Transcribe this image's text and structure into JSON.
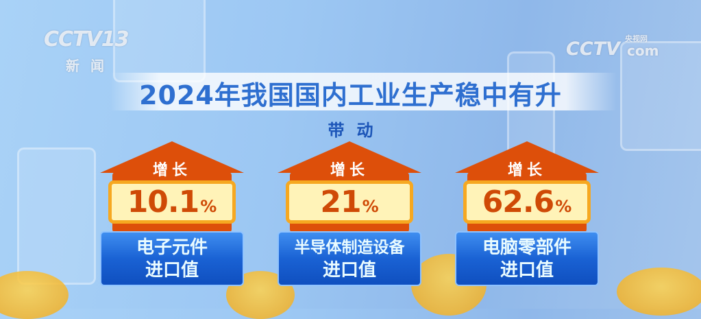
{
  "logos": {
    "left": "CCTV13",
    "left_sub": "新闻",
    "right": "CCTV",
    "right_sub": "央视网",
    "right_com": "com"
  },
  "title": "2024年我国国内工业生产稳中有升",
  "subtitle": "带动",
  "colors": {
    "title": "#2e6fd0",
    "arrow": "#dd4f0a",
    "value_bg": "#fff3b8",
    "label_bg": "#1a62d4"
  },
  "cards": [
    {
      "growth_label": "增长",
      "value": "10.1",
      "unit": "%",
      "label_line1": "电子元件",
      "label_line2": "进口值"
    },
    {
      "growth_label": "增长",
      "value": "21",
      "unit": "%",
      "label_line1": "半导体制造设备",
      "label_line2": "进口值"
    },
    {
      "growth_label": "增长",
      "value": "62.6",
      "unit": "%",
      "label_line1": "电脑零部件",
      "label_line2": "进口值"
    }
  ]
}
